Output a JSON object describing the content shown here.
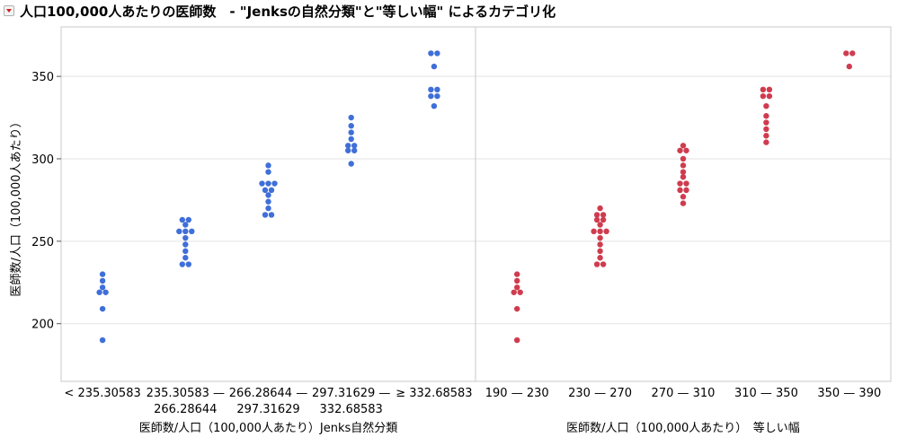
{
  "title": "人口100,000人あたりの医師数　- \"Jenksの自然分類\"と\"等しい幅\" によるカテゴリ化",
  "chart_data": {
    "type": "scatter",
    "ylabel": "医師数/人口（100,000人あたり）",
    "ylim": [
      165,
      380
    ],
    "yticks": [
      200,
      250,
      300,
      350
    ],
    "grid": true,
    "panels": [
      {
        "xlabel": "医師数/人口（100,000人あたり）Jenks自然分類",
        "color": "#3f6fd8",
        "categories": [
          {
            "line1": "< 235.30583",
            "line2": "",
            "values": [
              190,
              209,
              219,
              219,
              222,
              226,
              230
            ]
          },
          {
            "line1": "235.30583 —",
            "line2": "266.28644",
            "values": [
              236,
              236,
              240,
              244,
              248,
              252,
              256,
              256,
              256,
              260,
              263,
              263
            ]
          },
          {
            "line1": "266.28644 —",
            "line2": "297.31629",
            "values": [
              266,
              266,
              270,
              274,
              278,
              281,
              281,
              285,
              285,
              285,
              292,
              296
            ]
          },
          {
            "line1": "297.31629 —",
            "line2": "332.68583",
            "values": [
              297,
              305,
              305,
              308,
              308,
              312,
              316,
              320,
              325
            ]
          },
          {
            "line1": "≥ 332.68583",
            "line2": "",
            "values": [
              332,
              338,
              338,
              342,
              342,
              356,
              364,
              364
            ]
          }
        ]
      },
      {
        "xlabel": "医師数/人口（100,000人あたり）　等しい幅",
        "color": "#cf3c4f",
        "categories": [
          {
            "line1": "190 — 230",
            "line2": "",
            "values": [
              190,
              209,
              219,
              219,
              222,
              226,
              230
            ]
          },
          {
            "line1": "230 — 270",
            "line2": "",
            "values": [
              236,
              236,
              240,
              244,
              248,
              252,
              256,
              256,
              256,
              260,
              263,
              263,
              266,
              266,
              270
            ]
          },
          {
            "line1": "270 — 310",
            "line2": "",
            "values": [
              273,
              277,
              281,
              281,
              285,
              285,
              289,
              292,
              296,
              300,
              305,
              305,
              308
            ]
          },
          {
            "line1": "310 — 350",
            "line2": "",
            "values": [
              310,
              314,
              318,
              322,
              326,
              332,
              338,
              338,
              342,
              342
            ]
          },
          {
            "line1": "350 — 390",
            "line2": "",
            "values": [
              356,
              364,
              364
            ]
          }
        ]
      }
    ]
  }
}
